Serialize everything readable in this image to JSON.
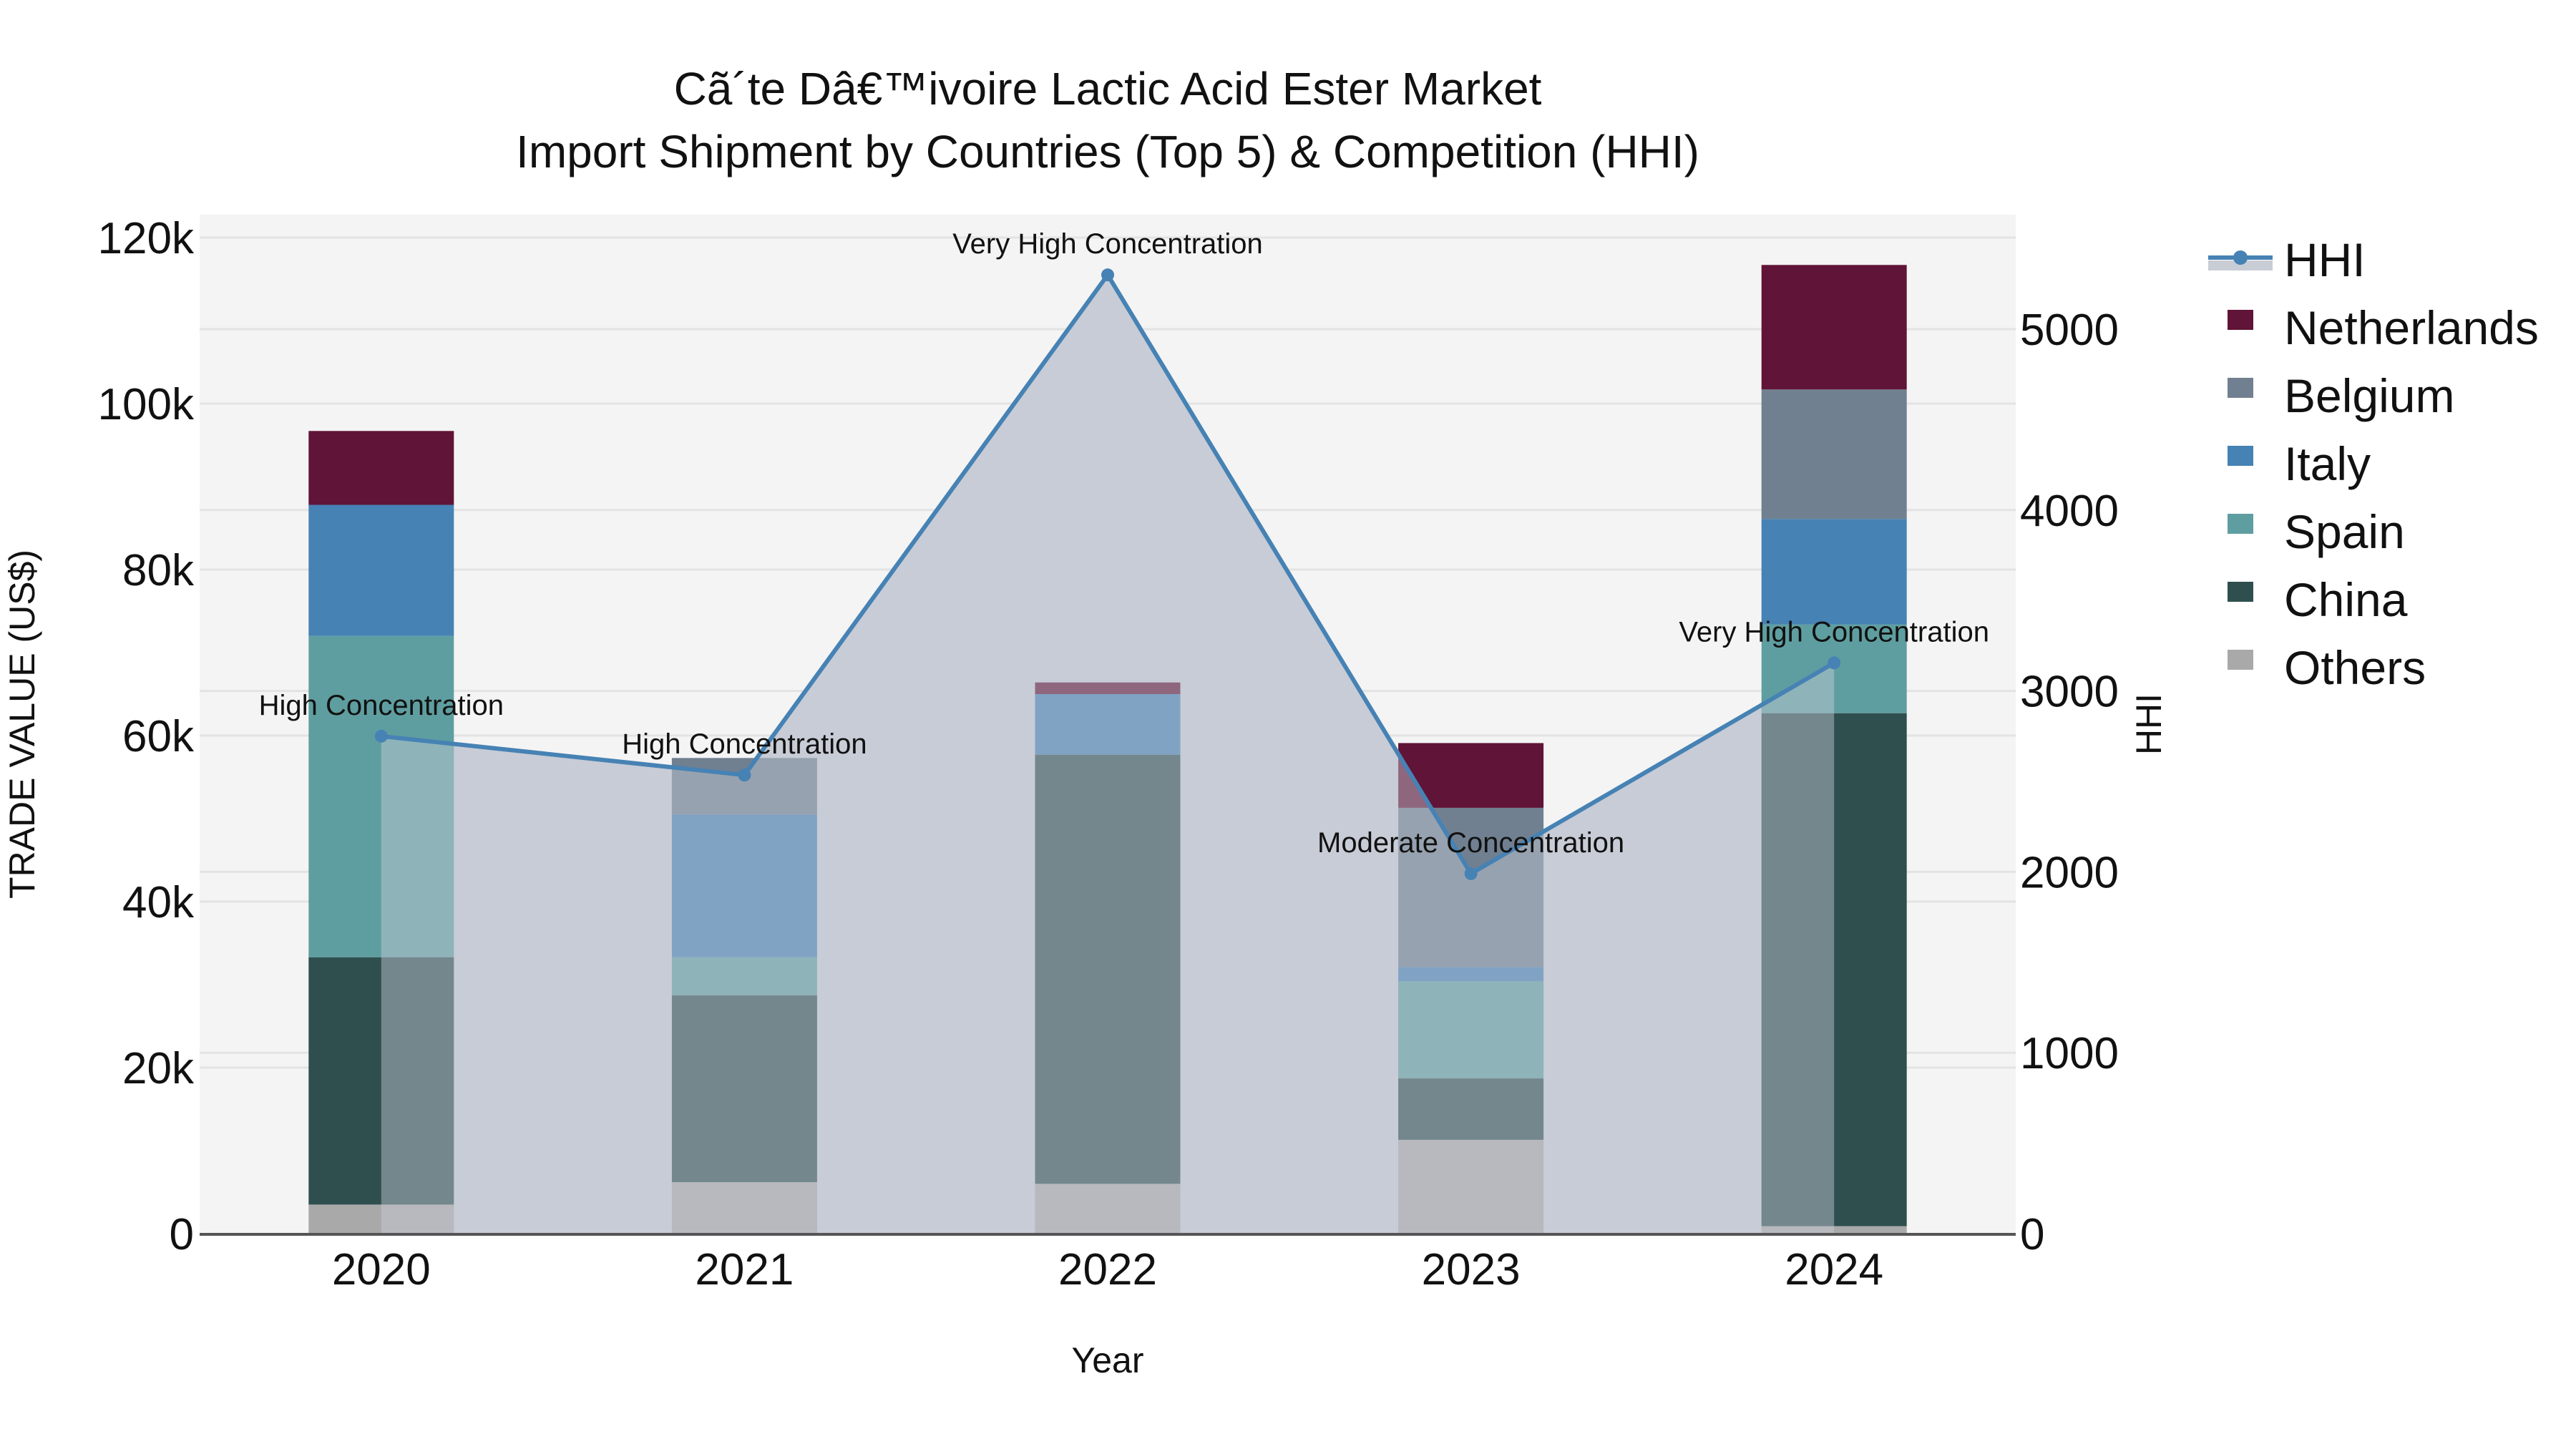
{
  "chart_data": {
    "type": "bar",
    "subtype": "stacked bar + line (dual axis)",
    "title": "Cã´te Dâ€™ivoire Lactic Acid Ester Market",
    "subtitle": "Import Shipment by Countries (Top 5) & Competition (HHI)",
    "xlabel": "Year",
    "ylabel": "TRADE VALUE (US$)",
    "y2label": "HHI",
    "categories": [
      "2020",
      "2021",
      "2022",
      "2023",
      "2024"
    ],
    "ylim": [
      0,
      122700
    ],
    "y2lim": [
      0,
      5633
    ],
    "yticks": [
      0,
      20000,
      40000,
      60000,
      80000,
      100000,
      120000
    ],
    "ytick_labels": [
      "0",
      "20k",
      "40k",
      "60k",
      "80k",
      "100k",
      "120k"
    ],
    "y2ticks": [
      0,
      1000,
      2000,
      3000,
      4000,
      5000
    ],
    "y2tick_labels": [
      "0",
      "1000",
      "2000",
      "3000",
      "4000",
      "5000"
    ],
    "grid": true,
    "legend_position": "right",
    "stack_order_bottom_to_top": [
      "Others",
      "China",
      "Spain",
      "Italy",
      "Belgium",
      "Netherlands"
    ],
    "series": [
      {
        "name": "Others",
        "color": "#a9a9a9",
        "values": [
          3500,
          6200,
          6000,
          11300,
          900
        ]
      },
      {
        "name": "China",
        "color": "#2f4f4f",
        "values": [
          29800,
          22500,
          51700,
          7400,
          61800
        ]
      },
      {
        "name": "Spain",
        "color": "#5f9ea0",
        "values": [
          38700,
          4600,
          0,
          11700,
          10700
        ]
      },
      {
        "name": "Italy",
        "color": "#4682b4",
        "values": [
          15800,
          17200,
          7300,
          1700,
          12700
        ]
      },
      {
        "name": "Belgium",
        "color": "#708090",
        "values": [
          0,
          6800,
          0,
          19200,
          15600
        ]
      },
      {
        "name": "Netherlands",
        "color": "#601437",
        "values": [
          8900,
          0,
          1400,
          7800,
          15000
        ]
      }
    ],
    "line_series": {
      "name": "HHI",
      "axis": "y2",
      "color": "#4682b4",
      "fill": "#c8cdd6",
      "values": [
        2750,
        2535,
        5300,
        1990,
        3155
      ],
      "annotations": [
        "High Concentration",
        "High Concentration",
        "Very High Concentration",
        "Moderate Concentration",
        "Very High Concentration"
      ]
    }
  },
  "legend": {
    "items": [
      {
        "label": "HHI",
        "type": "line",
        "color": "#4682b4"
      },
      {
        "label": "Netherlands",
        "type": "square",
        "color": "#601437"
      },
      {
        "label": "Belgium",
        "type": "square",
        "color": "#708090"
      },
      {
        "label": "Italy",
        "type": "square",
        "color": "#4682b4"
      },
      {
        "label": "Spain",
        "type": "square",
        "color": "#5f9ea0"
      },
      {
        "label": "China",
        "type": "square",
        "color": "#2f4f4f"
      },
      {
        "label": "Others",
        "type": "square",
        "color": "#a9a9a9"
      }
    ]
  },
  "colors": {
    "plot_background": "#f4f4f4",
    "gridline": "#e3e3e3",
    "axis_line": "#555555",
    "hhi_area": "#c8cdd6"
  }
}
